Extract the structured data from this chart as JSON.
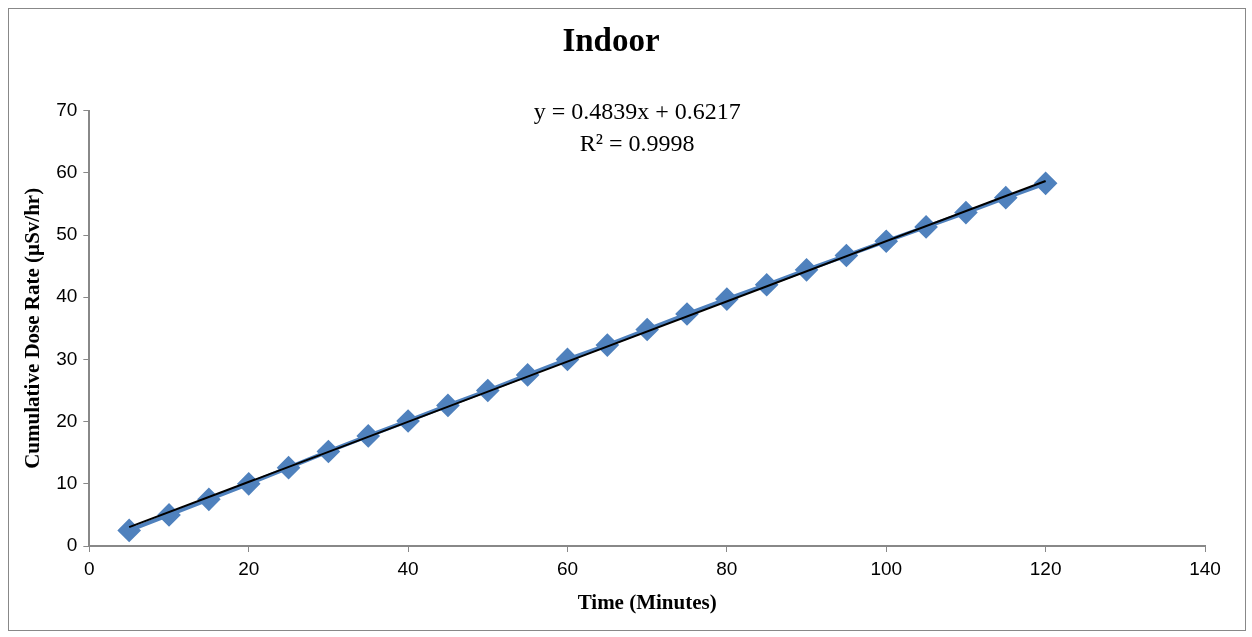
{
  "chart_data": {
    "type": "line",
    "title": "Indoor",
    "xlabel": "Time (Minutes)",
    "ylabel": "Cumulative Dose Rate (µSv/hr)",
    "x": [
      5,
      10,
      15,
      20,
      25,
      30,
      35,
      40,
      45,
      50,
      55,
      60,
      65,
      70,
      75,
      80,
      85,
      90,
      95,
      100,
      105,
      110,
      115,
      120
    ],
    "series": [
      {
        "color": "#4f81bd",
        "marker": "diamond",
        "values": [
          2.5,
          5.0,
          7.5,
          10.0,
          12.6,
          15.2,
          17.7,
          20.1,
          22.6,
          25.0,
          27.5,
          30.0,
          32.3,
          34.8,
          37.3,
          39.7,
          42.0,
          44.4,
          46.7,
          49.0,
          51.3,
          53.6,
          56.0,
          58.3
        ]
      },
      {
        "type": "line",
        "color": "#000000",
        "marker": "none",
        "x": [
          5,
          120
        ],
        "values": [
          3.04,
          58.69
        ]
      }
    ],
    "annotations": [
      "y = 0.4839x + 0.6217",
      "R² = 0.9998"
    ],
    "xlim": [
      0,
      140
    ],
    "xticks": [
      0,
      20,
      40,
      60,
      80,
      100,
      120,
      140
    ],
    "ylim": [
      0,
      70
    ],
    "yticks": [
      0,
      10,
      20,
      30,
      40,
      50,
      60,
      70
    ],
    "grid": false,
    "legend": false
  }
}
